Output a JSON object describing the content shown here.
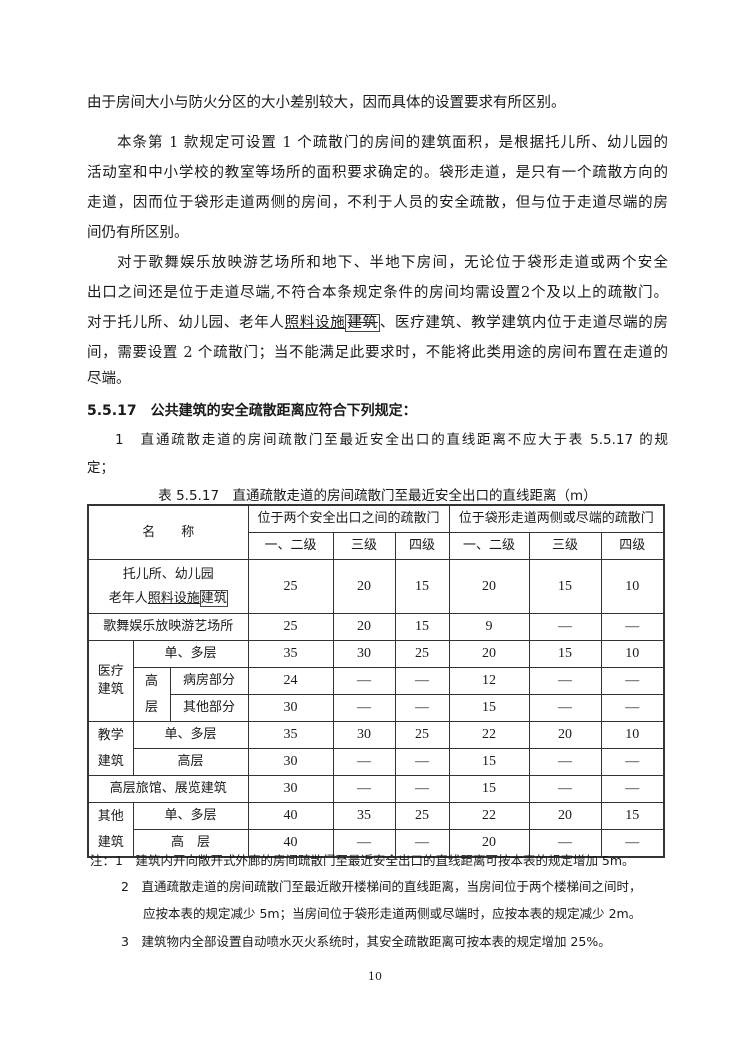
{
  "paragraphs": {
    "p1": [
      "由于房间大小与防火分区的大小差别较大，因而具体的设置要求有所区别。"
    ],
    "p2": [
      "本条第 1 款规定可设置 1 个疏散门的房间的建筑面积，是根据托儿所、幼儿园的",
      "活动室和中小学校的教室等场所的面积要求确定的。袋形走道，是只有一个疏散方向的",
      "走道，因而位于袋形走道两侧的房间，不利于人员的安全疏散，但与位于走道尽端的房",
      "间仍有所区别。"
    ],
    "p3": [
      "对于歌舞娱乐放映游艺场所和地下、半地下房间，无论位于袋形走道或两个安全",
      "出口之间还是位于走道尽端,不符合本条规定条件的房间均需设置2个及以上的疏散门。",
      "间，需要设置 2 个疏散门；当不能满足此要求时，不能将此类用途的房间布置在走道的",
      "尽端。"
    ],
    "p3_line3": {
      "a": "对于托儿所、幼儿园、老年人",
      "underlined": "照料设施",
      "boxed": "建筑",
      "b": "、医疗建筑、教学建筑内位于走道尽端的房"
    }
  },
  "clause": {
    "number": "5.5.17",
    "title": "公共建筑的安全疏散距离应符合下列规定：",
    "item1_line1": "1　直通疏散走道的房间疏散门至最近安全出口的直线距离不应大于表 5.5.17 的规",
    "item1_line2": "定；"
  },
  "table": {
    "caption": "表 5.5.17　直通疏散走道的房间疏散门至最近安全出口的直线距离（m）",
    "header_name": "名　　称",
    "group1": "位于两个安全出口之间的疏散门",
    "group2": "位于袋形走道两侧或尽端的疏散门",
    "grades": [
      "一、二级",
      "三级",
      "四级",
      "一、二级",
      "三级",
      "四级"
    ],
    "row_tuoer": {
      "l1": "托儿所、幼儿园",
      "l2a": "老年人",
      "l2u": "照料设施",
      "l2b": "建筑",
      "v": [
        "25",
        "20",
        "15",
        "20",
        "15",
        "10"
      ]
    },
    "row_gewu": {
      "name": "歌舞娱乐放映游艺场所",
      "v": [
        "25",
        "20",
        "15",
        "9",
        "—",
        "—"
      ]
    },
    "medical": {
      "name": "医疗建筑",
      "low": "单、多层",
      "high": "高层",
      "ward": "病房部分",
      "other": "其他部分",
      "v_low": [
        "35",
        "30",
        "25",
        "20",
        "15",
        "10"
      ],
      "v_ward": [
        "24",
        "—",
        "—",
        "12",
        "—",
        "—"
      ],
      "v_other": [
        "30",
        "—",
        "—",
        "15",
        "—",
        "—"
      ]
    },
    "teaching": {
      "name": "教学建筑",
      "low": "单、多层",
      "high": "高层",
      "v_low": [
        "35",
        "30",
        "25",
        "22",
        "20",
        "10"
      ],
      "v_high": [
        "30",
        "—",
        "—",
        "15",
        "—",
        "—"
      ]
    },
    "hotel": {
      "name": "高层旅馆、展览建筑",
      "v": [
        "30",
        "—",
        "—",
        "15",
        "—",
        "—"
      ]
    },
    "others": {
      "name": "其他建筑",
      "low": "单、多层",
      "high": "高　层",
      "v_low": [
        "40",
        "35",
        "25",
        "22",
        "20",
        "15"
      ],
      "v_high": [
        "40",
        "—",
        "—",
        "20",
        "—",
        "—"
      ]
    }
  },
  "notes": {
    "n1": "注：1　建筑内开向敞开式外廊的房间疏散门至最近安全出口的直线距离可按本表的规定增加 5m。",
    "n2a": "2　直通疏散走道的房间疏散门至最近敞开楼梯间的直线距离，当房间位于两个楼梯间之间时，",
    "n2b": "应按本表的规定减少 5m；当房间位于袋形走道两侧或尽端时，应按本表的规定减少 2m。",
    "n3": "3　建筑物内全部设置自动喷水灭火系统时，其安全疏散距离可按本表的规定增加 25%。"
  },
  "page_number": "10"
}
